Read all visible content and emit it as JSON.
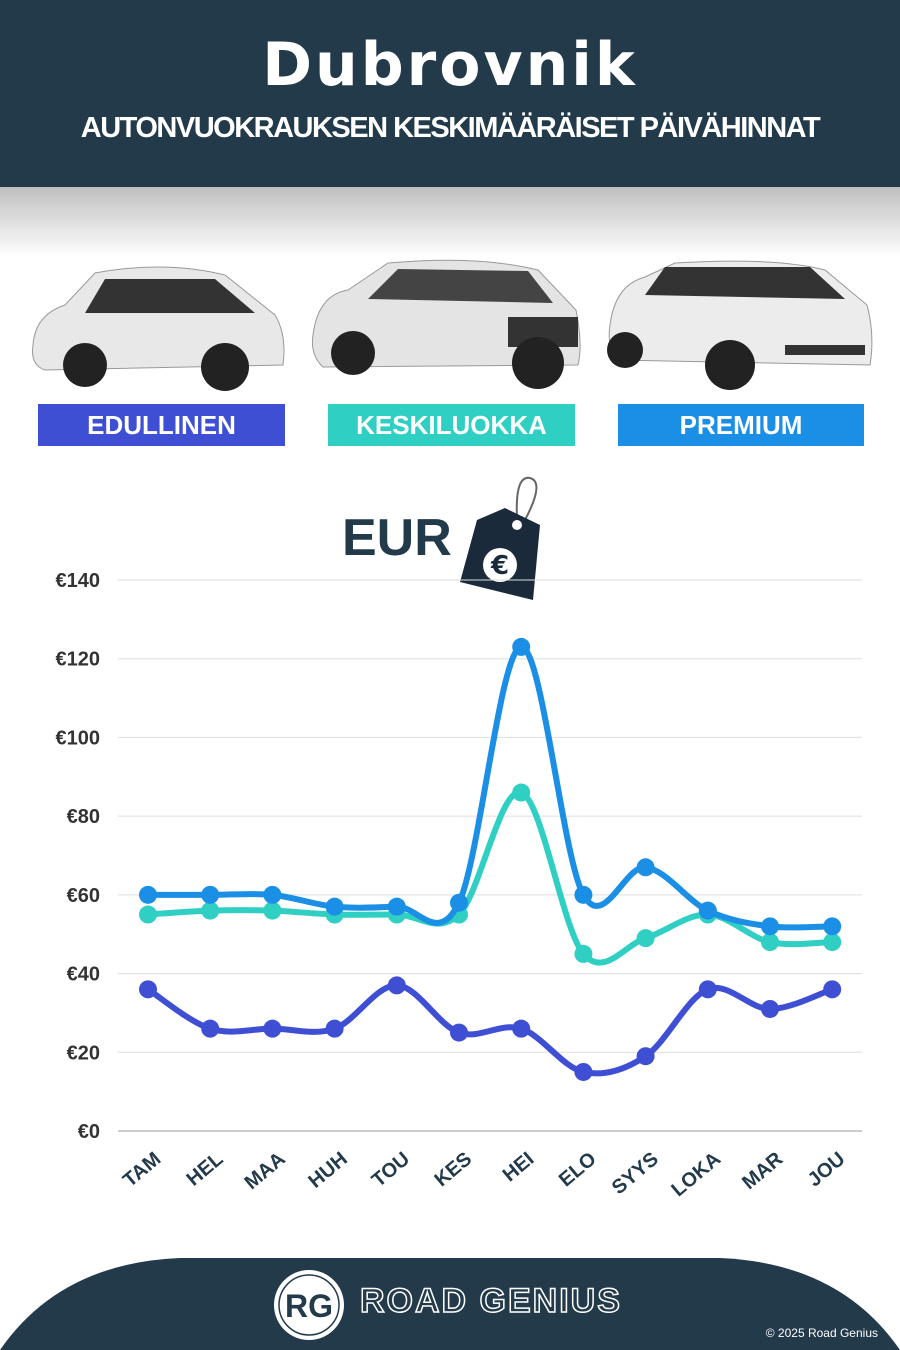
{
  "header": {
    "title": "Dubrovnik",
    "subtitle": "AUTONVUOKRAUKSEN KESKIMÄÄRÄISET PÄIVÄHINNAT"
  },
  "categories_legend": [
    {
      "label": "EDULLINEN",
      "color": "#3f4fd4"
    },
    {
      "label": "KESKILUOKKA",
      "color": "#2fcfc4"
    },
    {
      "label": "PREMIUM",
      "color": "#1a8fe5"
    }
  ],
  "currency_label": "EUR",
  "icons": [
    "price-tag-icon",
    "euro-icon"
  ],
  "chart_data": {
    "type": "line",
    "categories": [
      "TAM",
      "HEL",
      "MAA",
      "HUH",
      "TOU",
      "KES",
      "HEI",
      "ELO",
      "SYYS",
      "LOKA",
      "MAR",
      "JOU"
    ],
    "ylim": [
      0,
      140
    ],
    "yticks": [
      0,
      20,
      40,
      60,
      80,
      100,
      120,
      140
    ],
    "ytick_labels": [
      "€0",
      "€20",
      "€40",
      "€60",
      "€80",
      "€100",
      "€120",
      "€140"
    ],
    "grid": true,
    "series": [
      {
        "name": "EDULLINEN",
        "color": "#3f4fd4",
        "values": [
          36,
          26,
          26,
          26,
          37,
          25,
          26,
          15,
          19,
          36,
          31,
          36
        ]
      },
      {
        "name": "KESKILUOKKA",
        "color": "#2fcfc4",
        "values": [
          55,
          56,
          56,
          55,
          55,
          55,
          86,
          45,
          49,
          55,
          48,
          48
        ]
      },
      {
        "name": "PREMIUM",
        "color": "#1a8fe5",
        "values": [
          60,
          60,
          60,
          57,
          57,
          58,
          123,
          60,
          67,
          56,
          52,
          52
        ]
      }
    ]
  },
  "footer": {
    "brand": "ROAD GENIUS",
    "logo": "RG",
    "copyright": "© 2025 Road Genius"
  }
}
